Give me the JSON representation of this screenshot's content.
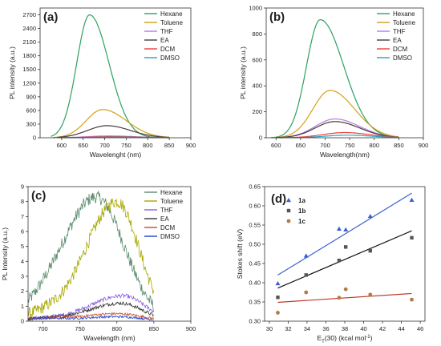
{
  "chart_data": [
    {
      "panel": "(a)",
      "type": "line",
      "xlabel": "Wavelenght (nm)",
      "ylabel": "PL intensity (a.u.)",
      "xlim": [
        550,
        900
      ],
      "ylim": [
        0,
        2850
      ],
      "xticks": [
        600,
        650,
        700,
        750,
        800,
        850,
        900
      ],
      "yticks": [
        0,
        300,
        600,
        900,
        1200,
        1500,
        1800,
        2100,
        2400,
        2700
      ],
      "legend": "top-right",
      "series": [
        {
          "name": "Hexane",
          "color": "#2ca25f",
          "peak_x": 665,
          "peak_y": 2700,
          "left_width": 30,
          "right_width": 45,
          "x_start": 575,
          "x_end": 850
        },
        {
          "name": "Toluene",
          "color": "#d4a017",
          "peak_x": 695,
          "peak_y": 620,
          "left_width": 38,
          "right_width": 55,
          "x_start": 580,
          "x_end": 850
        },
        {
          "name": "THF",
          "color": "#b57edc",
          "peak_x": 710,
          "peak_y": 40,
          "left_width": 50,
          "right_width": 60,
          "x_start": 600,
          "x_end": 850
        },
        {
          "name": "EA",
          "color": "#4a3b3b",
          "peak_x": 705,
          "peak_y": 265,
          "left_width": 45,
          "right_width": 55,
          "x_start": 590,
          "x_end": 850
        },
        {
          "name": "DCM",
          "color": "#e8413a",
          "peak_x": 720,
          "peak_y": 25,
          "left_width": 50,
          "right_width": 60,
          "x_start": 600,
          "x_end": 850
        },
        {
          "name": "DMSO",
          "color": "#2b9fbf",
          "peak_x": 730,
          "peak_y": 15,
          "left_width": 50,
          "right_width": 60,
          "x_start": 600,
          "x_end": 850
        }
      ]
    },
    {
      "panel": "(b)",
      "type": "line",
      "xlabel": "Wavelength(nm)",
      "ylabel": "PL intensity (a.u.)",
      "xlim": [
        580,
        900
      ],
      "ylim": [
        0,
        1000
      ],
      "xticks": [
        600,
        650,
        700,
        750,
        800,
        850,
        900
      ],
      "yticks": [
        0,
        200,
        400,
        600,
        800,
        1000
      ],
      "legend": "top-right",
      "series": [
        {
          "name": "Hexane",
          "color": "#2ca25f",
          "peak_x": 690,
          "peak_y": 910,
          "left_width": 28,
          "right_width": 48,
          "x_start": 590,
          "x_end": 850
        },
        {
          "name": "Toluene",
          "color": "#d4a017",
          "peak_x": 710,
          "peak_y": 365,
          "left_width": 35,
          "right_width": 50,
          "x_start": 595,
          "x_end": 850
        },
        {
          "name": "THF",
          "color": "#b57edc",
          "peak_x": 720,
          "peak_y": 145,
          "left_width": 40,
          "right_width": 50,
          "x_start": 600,
          "x_end": 850
        },
        {
          "name": "EA",
          "color": "#4a3b3b",
          "peak_x": 720,
          "peak_y": 125,
          "left_width": 40,
          "right_width": 50,
          "x_start": 600,
          "x_end": 850
        },
        {
          "name": "DCM",
          "color": "#e8413a",
          "peak_x": 740,
          "peak_y": 40,
          "left_width": 45,
          "right_width": 50,
          "x_start": 610,
          "x_end": 850
        },
        {
          "name": "DMSO",
          "color": "#2b9fbf",
          "peak_x": 745,
          "peak_y": 20,
          "left_width": 45,
          "right_width": 50,
          "x_start": 610,
          "x_end": 850
        }
      ]
    },
    {
      "panel": "(c)",
      "type": "line",
      "xlabel": "Wavelength (nm)",
      "ylabel": "PL Intensity (a.u.)",
      "xlim": [
        680,
        900
      ],
      "ylim": [
        0,
        9
      ],
      "xticks": [
        700,
        750,
        800,
        850,
        900
      ],
      "yticks": [
        0,
        1,
        2,
        3,
        4,
        5,
        6,
        7,
        8,
        9
      ],
      "legend": "top-right",
      "noisy": true,
      "series": [
        {
          "name": "Hexane",
          "color": "#5b8c6e",
          "peak_x": 772,
          "peak_y": 8.3,
          "left_width": 45,
          "right_width": 38,
          "x_start": 680,
          "x_end": 850
        },
        {
          "name": "Toluene",
          "color": "#a8a800",
          "peak_x": 800,
          "peak_y": 8.0,
          "left_width": 42,
          "right_width": 30,
          "x_start": 680,
          "x_end": 850
        },
        {
          "name": "THF",
          "color": "#8a5fe0",
          "peak_x": 808,
          "peak_y": 1.7,
          "left_width": 45,
          "right_width": 30,
          "x_start": 680,
          "x_end": 850
        },
        {
          "name": "EA",
          "color": "#333333",
          "peak_x": 805,
          "peak_y": 1.2,
          "left_width": 45,
          "right_width": 30,
          "x_start": 680,
          "x_end": 850
        },
        {
          "name": "DCM",
          "color": "#c84a2a",
          "peak_x": 800,
          "peak_y": 0.5,
          "left_width": 50,
          "right_width": 35,
          "x_start": 680,
          "x_end": 850
        },
        {
          "name": "DMSO",
          "color": "#2040d0",
          "peak_x": 800,
          "peak_y": 0.3,
          "left_width": 50,
          "right_width": 35,
          "x_start": 680,
          "x_end": 850
        }
      ]
    },
    {
      "panel": "(d)",
      "type": "scatter",
      "xlabel_main": "E",
      "xlabel_sub": "T",
      "xlabel_rest": "(30) (kcal mol",
      "xlabel_sup": "-1",
      "xlabel_close": ")",
      "ylabel": "Stokes shift (eV)",
      "xlim": [
        29.5,
        46.5
      ],
      "ylim": [
        0.3,
        0.65
      ],
      "xticks": [
        30,
        32,
        34,
        36,
        38,
        40,
        42,
        44,
        46
      ],
      "yticks": [
        0.3,
        0.35,
        0.4,
        0.45,
        0.5,
        0.55,
        0.6,
        0.65
      ],
      "legend": "top-left",
      "series": [
        {
          "name": "1a",
          "color": "#3a5fd0",
          "line_color": "#3a5fd0",
          "marker": "triangle",
          "x": [
            30.9,
            33.9,
            37.4,
            38.1,
            40.7,
            45.1
          ],
          "y": [
            0.398,
            0.47,
            0.54,
            0.538,
            0.573,
            0.615
          ],
          "fit": [
            [
              30.9,
              0.42
            ],
            [
              45.1,
              0.633
            ]
          ]
        },
        {
          "name": "1b",
          "color": "#555555",
          "line_color": "#111111",
          "marker": "square",
          "x": [
            30.9,
            33.9,
            37.4,
            38.1,
            40.7,
            45.1
          ],
          "y": [
            0.362,
            0.42,
            0.458,
            0.493,
            0.483,
            0.517
          ],
          "fit": [
            [
              30.9,
              0.386
            ],
            [
              45.1,
              0.535
            ]
          ]
        },
        {
          "name": "1c",
          "color": "#b07a4a",
          "line_color": "#c0392b",
          "marker": "circle",
          "x": [
            30.9,
            33.9,
            37.4,
            38.1,
            40.7,
            45.1
          ],
          "y": [
            0.322,
            0.375,
            0.361,
            0.383,
            0.369,
            0.356
          ],
          "fit": [
            [
              30.9,
              0.349
            ],
            [
              45.1,
              0.372
            ]
          ]
        }
      ]
    }
  ]
}
